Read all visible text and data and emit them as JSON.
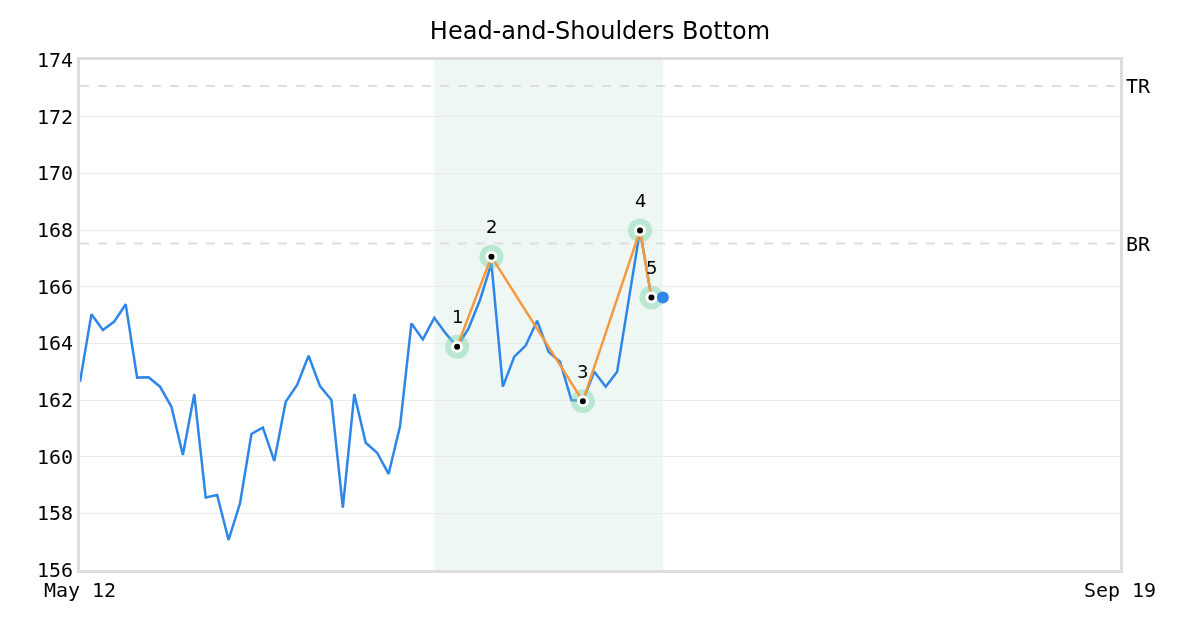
{
  "chart_data": {
    "type": "line",
    "title": "Head-and-Shoulders Bottom",
    "categories": [
      "May 12",
      null,
      null,
      null,
      null,
      null,
      null,
      null,
      null,
      null,
      null,
      null,
      null,
      null,
      null,
      null,
      null,
      null,
      null,
      null,
      null,
      null,
      null,
      null,
      null,
      null,
      null,
      null,
      null,
      null,
      null,
      null,
      null,
      null,
      null,
      null,
      null,
      null,
      null,
      null,
      null,
      null,
      null,
      null,
      null,
      null,
      null,
      null,
      null,
      null,
      null,
      null,
      null,
      null,
      null,
      null,
      null,
      null,
      null,
      null,
      null,
      null,
      null,
      null,
      null,
      null,
      null,
      null,
      null,
      null,
      null,
      null,
      null,
      null,
      null,
      null,
      null,
      null,
      null,
      null,
      null,
      null,
      null,
      null,
      null,
      null,
      null,
      null,
      null,
      null,
      null,
      "Sep 19"
    ],
    "ylim": [
      156,
      174
    ],
    "yticks": [
      156,
      158,
      160,
      162,
      164,
      166,
      168,
      170,
      172,
      174
    ],
    "grid": "y",
    "series": [
      {
        "color": "#2e86e8",
        "values": [
          162.64,
          165.03,
          164.47,
          164.77,
          165.38,
          162.79,
          162.8,
          162.47,
          161.76,
          160.06,
          162.21,
          158.56,
          158.65,
          157.06,
          158.35,
          160.8,
          161.03,
          159.85,
          161.94,
          162.53,
          163.56,
          162.49,
          162.0,
          158.2,
          162.21,
          160.49,
          160.14,
          159.39,
          161.06,
          164.7,
          164.14,
          164.9,
          164.35,
          163.88,
          164.53,
          165.53,
          166.82,
          162.47,
          163.53,
          163.92,
          164.8,
          163.7,
          163.35,
          162.0,
          161.96,
          163.0,
          162.47,
          163.0,
          165.5,
          167.98,
          165.62,
          null,
          null,
          null,
          null,
          null,
          null,
          null,
          null,
          null,
          null,
          null,
          null,
          null,
          null,
          null,
          null,
          null,
          null,
          null,
          null,
          null,
          null,
          null,
          null,
          null,
          null,
          null,
          null,
          null,
          null,
          null,
          null,
          null,
          null,
          null,
          null,
          null,
          null,
          null,
          null,
          null
        ]
      },
      {
        "type": "line",
        "color": "#f59a3c",
        "marker": "circle",
        "values": [
          null,
          null,
          null,
          null,
          null,
          null,
          null,
          null,
          null,
          null,
          null,
          null,
          null,
          null,
          null,
          null,
          null,
          null,
          null,
          null,
          null,
          null,
          null,
          null,
          null,
          null,
          null,
          null,
          null,
          null,
          null,
          null,
          null,
          163.88,
          null,
          null,
          167.06,
          null,
          null,
          null,
          null,
          null,
          null,
          null,
          161.96,
          null,
          null,
          null,
          null,
          167.98,
          165.62,
          null,
          null,
          null,
          null,
          null,
          null,
          null,
          null,
          null,
          null,
          null,
          null,
          null,
          null,
          null,
          null,
          null,
          null,
          null,
          null,
          null,
          null,
          null,
          null,
          null,
          null,
          null,
          null,
          null,
          null,
          null,
          null,
          null,
          null,
          null,
          null,
          null,
          null,
          null,
          null,
          null
        ]
      },
      {
        "type": "scatter",
        "color": "#2e86e8",
        "marker": "circle",
        "values": [
          null,
          null,
          null,
          null,
          null,
          null,
          null,
          null,
          null,
          null,
          null,
          null,
          null,
          null,
          null,
          null,
          null,
          null,
          null,
          null,
          null,
          null,
          null,
          null,
          null,
          null,
          null,
          null,
          null,
          null,
          null,
          null,
          null,
          null,
          null,
          null,
          null,
          null,
          null,
          null,
          null,
          null,
          null,
          null,
          null,
          null,
          null,
          null,
          null,
          null,
          null,
          165.62,
          null,
          null,
          null,
          null,
          null,
          null,
          null,
          null,
          null,
          null,
          null,
          null,
          null,
          null,
          null,
          null,
          null,
          null,
          null,
          null,
          null,
          null,
          null,
          null,
          null,
          null,
          null,
          null,
          null,
          null,
          null,
          null,
          null,
          null,
          null,
          null,
          null,
          null,
          null,
          null
        ]
      }
    ],
    "annotations": [
      "1",
      "2",
      "3",
      "4",
      "5"
    ],
    "ref_lines": [
      {
        "axis": "y",
        "value": 173.08,
        "label": "TR",
        "color": "#dddddd",
        "line_style": "dashed"
      },
      {
        "axis": "y",
        "value": 167.52,
        "label": "BR",
        "color": "#dddddd",
        "line_style": "dashed"
      }
    ]
  }
}
